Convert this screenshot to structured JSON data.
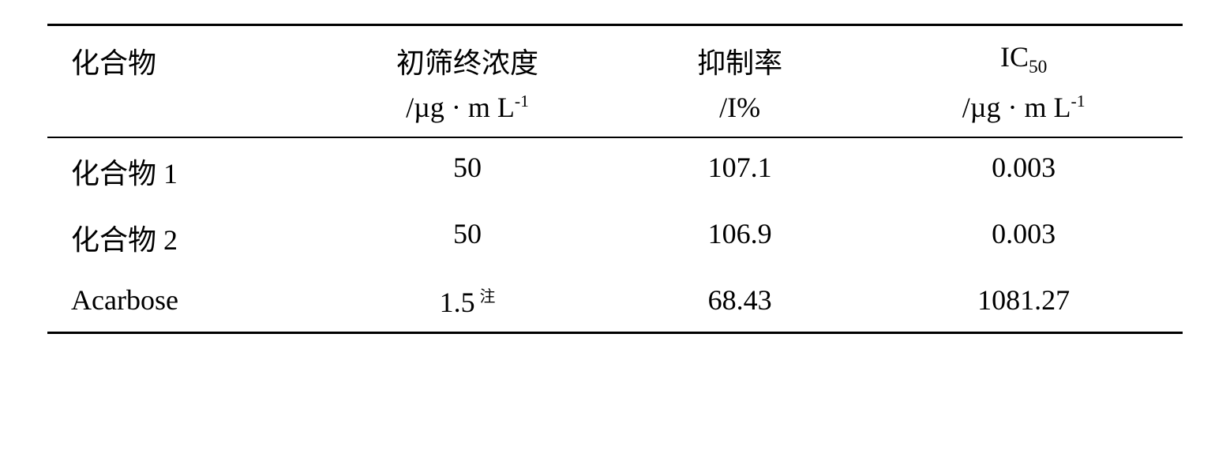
{
  "table": {
    "headers": {
      "compound": "化合物",
      "concentration_label": "初筛终浓度",
      "concentration_unit_pre": "/µg · m L",
      "concentration_unit_exp": "-1",
      "inhibition_label": "抑制率",
      "inhibition_unit": "/I%",
      "ic50_label_pre": "IC",
      "ic50_label_sub": "50",
      "ic50_unit_pre": "/µg · m L",
      "ic50_unit_exp": "-1"
    },
    "rows": [
      {
        "compound": "化合物 1",
        "concentration": "50",
        "note": "",
        "inhibition": "107.1",
        "ic50": "0.003"
      },
      {
        "compound": "化合物 2",
        "concentration": "50",
        "note": "",
        "inhibition": "106.9",
        "ic50": "0.003"
      },
      {
        "compound": "Acarbose",
        "concentration": "1.5",
        "note": "注",
        "inhibition": "68.43",
        "ic50": "1081.27"
      }
    ],
    "col_widths": [
      "24%",
      "26%",
      "22%",
      "28%"
    ]
  }
}
